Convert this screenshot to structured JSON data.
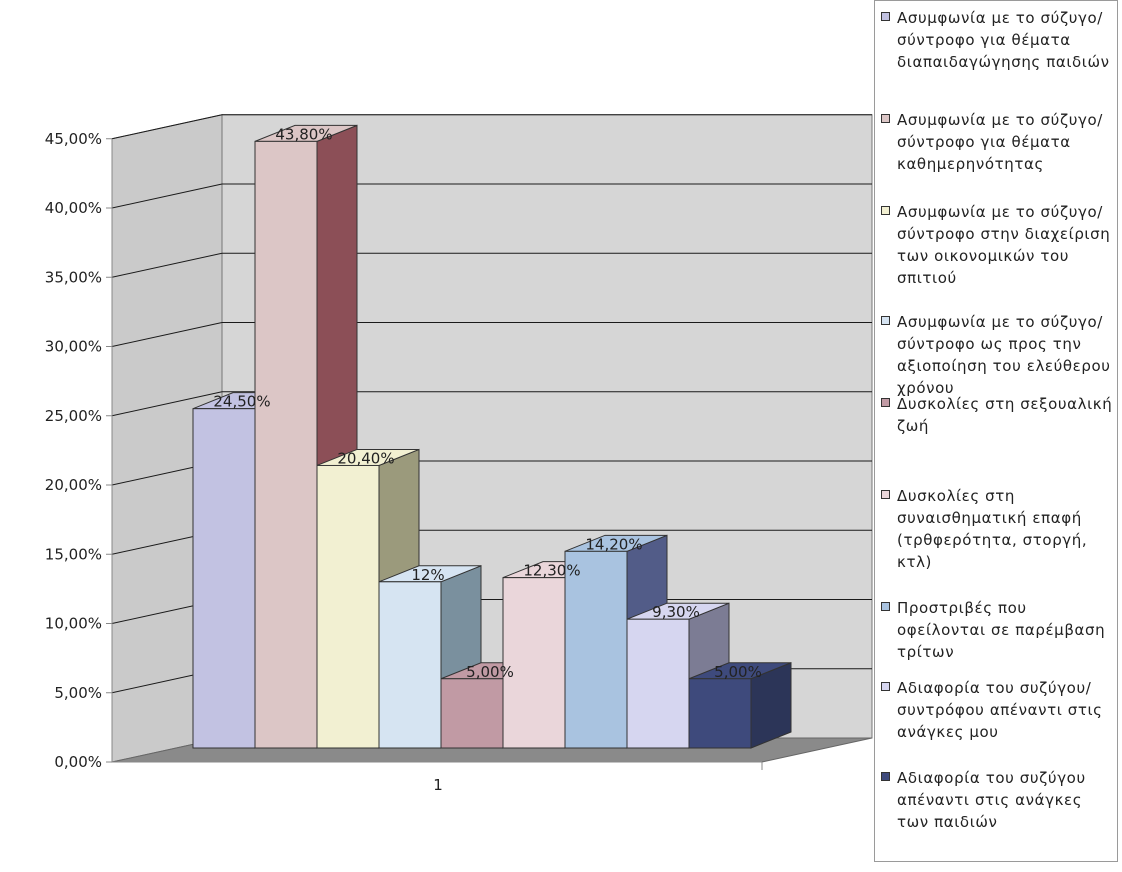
{
  "chart_data": {
    "type": "bar",
    "categories": [
      "1"
    ],
    "series": [
      {
        "name": "Ασυμφωνία με το σύζυγο/σύντροφο για θέματα διαπαιδαγώγησης παιδιών",
        "value": 24.5,
        "label": "24,50%",
        "color": "#c2c2e2",
        "side": "#8f8fae"
      },
      {
        "name": "Ασυμφωνία με το σύζυγο/σύντροφο για θέματα καθημερηνότητας",
        "value": 43.8,
        "label": "43,80%",
        "color": "#dcc6c6",
        "side": "#8c4f57"
      },
      {
        "name": "Ασυμφωνία με το σύζυγο/σύντροφο στην διαχείριση των οικονομικών του σπιτιού",
        "value": 20.4,
        "label": "20,40%",
        "color": "#f2f0d2",
        "side": "#9b9a7c"
      },
      {
        "name": "Ασυμφωνία με το σύζυγο/σύντροφο ως προς την αξιοποίηση του ελεύθερου χρόνου",
        "value": 12.0,
        "label": "12%",
        "color": "#d6e4f2",
        "side": "#7a909e"
      },
      {
        "name": "Δυσκολίες στη σεξουαλική ζωή",
        "value": 5.0,
        "label": "5,00%",
        "color": "#c19aa4",
        "side": "#7e5460"
      },
      {
        "name": "Δυσκολίες στη συναισθηματική επαφή (τρθφερότητα, στοργή, κτλ)",
        "value": 12.3,
        "label": "12,30%",
        "color": "#ead6da",
        "side": "#9c8a8e"
      },
      {
        "name": "Προστριβές που οφείλονται σε παρέμβαση τρίτων",
        "value": 14.2,
        "label": "14,20%",
        "color": "#a9c3e0",
        "side": "#525c88"
      },
      {
        "name": "Αδιαφορία του συζύγου/συντρόφου απέναντι στις ανάγκες μου",
        "value": 9.3,
        "label": "9,30%",
        "color": "#d6d6f0",
        "side": "#7c7c94"
      },
      {
        "name": "Αδιαφορία του συζύγου απέναντι στις ανάγκες των παιδιών",
        "value": 5.0,
        "label": "5,00%",
        "color": "#3e4a7c",
        "side": "#2c3558"
      }
    ],
    "y_ticks": [
      "0,00%",
      "5,00%",
      "10,00%",
      "15,00%",
      "20,00%",
      "25,00%",
      "30,00%",
      "35,00%",
      "40,00%",
      "45,00%"
    ],
    "ylim": [
      0,
      45
    ],
    "title": "",
    "xlabel": "",
    "ylabel": "",
    "grid": true,
    "legend_position": "right"
  },
  "colors": {
    "wall": "#d6d6d6",
    "floor": "#8a8a8a",
    "gridline": "#1a1a1a",
    "axis": "#888888"
  }
}
